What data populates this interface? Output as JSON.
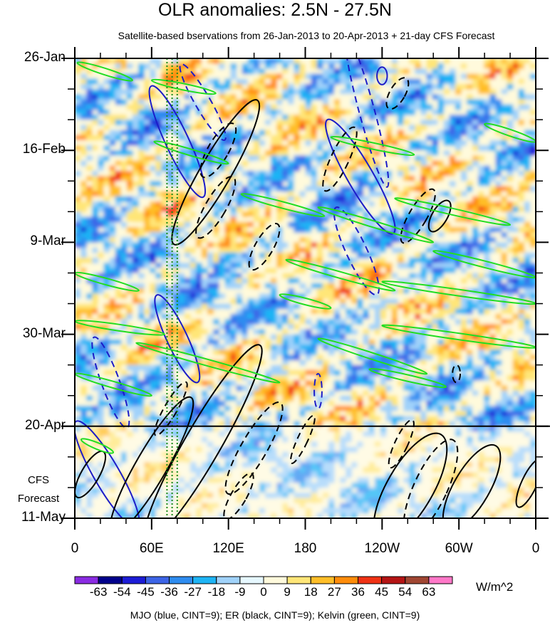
{
  "chart_data": {
    "type": "heatmap",
    "title": "OLR anomalies: 2.5N - 27.5N",
    "subtitle": "Satellite-based bservations from 26-Jan-2013 to 20-Apr-2013 + 21-day CFS Forecast",
    "xlabel": "",
    "ylabel": "",
    "x_ticks": [
      {
        "lon": 0,
        "label": "0"
      },
      {
        "lon": 60,
        "label": "60E"
      },
      {
        "lon": 120,
        "label": "120E"
      },
      {
        "lon": 180,
        "label": "180"
      },
      {
        "lon": 240,
        "label": "120W"
      },
      {
        "lon": 300,
        "label": "60W"
      },
      {
        "lon": 360,
        "label": "0"
      }
    ],
    "xlim": [
      0,
      360
    ],
    "y_ticks": [
      {
        "day": 0,
        "label": "26-Jan"
      },
      {
        "day": 21,
        "label": "16-Feb"
      },
      {
        "day": 42,
        "label": "9-Mar"
      },
      {
        "day": 63,
        "label": "30-Mar"
      },
      {
        "day": 84,
        "label": "20-Apr"
      },
      {
        "day": 105,
        "label": "11-May"
      }
    ],
    "ylim_days": [
      0,
      105
    ],
    "forecast_start_day": 84,
    "forecast_label_line1": "CFS",
    "forecast_label_line2": "Forecast",
    "vertical_dotted_lines_lon": [
      72,
      76,
      80
    ],
    "colorbar": {
      "units": "W/m^2",
      "labels": [
        "-63",
        "-54",
        "-45",
        "-36",
        "-27",
        "-18",
        "-9",
        "0",
        "9",
        "18",
        "27",
        "36",
        "45",
        "54",
        "63"
      ],
      "colors": [
        "#8a2be2",
        "#00008b",
        "#1c1cd6",
        "#3c64e6",
        "#2e8cf0",
        "#1eb4f5",
        "#a0d2fa",
        "#e6f8ff",
        "#fffadc",
        "#ffe678",
        "#ffbe28",
        "#ff8c0a",
        "#f03214",
        "#b41414",
        "#a04632",
        "#ff78c8"
      ]
    },
    "legend": "MJO (blue, CINT=9); ER (black, CINT=9); Kelvin (green, CINT=9)",
    "contours": {
      "mjo": [
        {
          "lon": 100,
          "day": 10,
          "lon_r": 6,
          "day_r": 10,
          "tilt": -30,
          "dash": true
        },
        {
          "lon": 80,
          "day": 19,
          "lon_r": 9,
          "day_r": 14,
          "tilt": -25,
          "dash": false
        },
        {
          "lon": 240,
          "day": 4,
          "lon_r": 4,
          "day_r": 2,
          "tilt": 0,
          "dash": false
        },
        {
          "lon": 228,
          "day": 12,
          "lon_r": 6,
          "day_r": 18,
          "tilt": -15,
          "dash": true
        },
        {
          "lon": 223,
          "day": 27,
          "lon_r": 10,
          "day_r": 15,
          "tilt": -30,
          "dash": false
        },
        {
          "lon": 220,
          "day": 44,
          "lon_r": 8,
          "day_r": 11,
          "tilt": -25,
          "dash": true
        },
        {
          "lon": 80,
          "day": 64,
          "lon_r": 8,
          "day_r": 11,
          "tilt": -25,
          "dash": false
        },
        {
          "lon": 28,
          "day": 74,
          "lon_r": 7,
          "day_r": 11,
          "tilt": -20,
          "dash": true
        },
        {
          "lon": 25,
          "day": 95,
          "lon_r": 10,
          "day_r": 14,
          "tilt": -30,
          "dash": false
        },
        {
          "lon": 190,
          "day": 76,
          "lon_r": 3,
          "day_r": 4,
          "tilt": 0,
          "dash": true
        }
      ],
      "er": [
        {
          "lon": 110,
          "day": 26,
          "lon_r": 12,
          "day_r": 19,
          "tilt": 30,
          "dash": false
        },
        {
          "lon": 112,
          "day": 21,
          "lon_r": 8,
          "day_r": 7,
          "tilt": 30,
          "dash": true
        },
        {
          "lon": 110,
          "day": 34,
          "lon_r": 8,
          "day_r": 8,
          "tilt": 30,
          "dash": true
        },
        {
          "lon": 148,
          "day": 43,
          "lon_r": 7,
          "day_r": 6,
          "tilt": 30,
          "dash": true
        },
        {
          "lon": 207,
          "day": 23,
          "lon_r": 7,
          "day_r": 8,
          "tilt": 25,
          "dash": true
        },
        {
          "lon": 252,
          "day": 8,
          "lon_r": 6,
          "day_r": 4,
          "tilt": 30,
          "dash": true
        },
        {
          "lon": 268,
          "day": 36,
          "lon_r": 7,
          "day_r": 7,
          "tilt": 30,
          "dash": true
        },
        {
          "lon": 285,
          "day": 36,
          "lon_r": 6,
          "day_r": 4,
          "tilt": 30,
          "dash": false
        },
        {
          "lon": 100,
          "day": 88,
          "lon_r": 14,
          "day_r": 26,
          "tilt": 30,
          "dash": false
        },
        {
          "lon": 60,
          "day": 93,
          "lon_r": 12,
          "day_r": 18,
          "tilt": 30,
          "dash": false
        },
        {
          "lon": 75,
          "day": 80,
          "lon_r": 5,
          "day_r": 7,
          "tilt": 30,
          "dash": true
        },
        {
          "lon": 140,
          "day": 89,
          "lon_r": 10,
          "day_r": 12,
          "tilt": 30,
          "dash": true
        },
        {
          "lon": 128,
          "day": 100,
          "lon_r": 6,
          "day_r": 6,
          "tilt": 30,
          "dash": true
        },
        {
          "lon": 178,
          "day": 87,
          "lon_r": 4,
          "day_r": 6,
          "tilt": 25,
          "dash": true
        },
        {
          "lon": 255,
          "day": 88,
          "lon_r": 5,
          "day_r": 6,
          "tilt": 25,
          "dash": true
        },
        {
          "lon": 262,
          "day": 98,
          "lon_r": 18,
          "day_r": 14,
          "tilt": 30,
          "dash": false
        },
        {
          "lon": 278,
          "day": 98,
          "lon_r": 13,
          "day_r": 12,
          "tilt": 25,
          "dash": true
        },
        {
          "lon": 310,
          "day": 98,
          "lon_r": 14,
          "day_r": 11,
          "tilt": 30,
          "dash": false
        },
        {
          "lon": 355,
          "day": 97,
          "lon_r": 6,
          "day_r": 6,
          "tilt": 25,
          "dash": false
        },
        {
          "lon": 298,
          "day": 72,
          "lon_r": 3,
          "day_r": 2,
          "tilt": 0,
          "dash": true
        },
        {
          "lon": 12,
          "day": 95,
          "lon_r": 7,
          "day_r": 6,
          "tilt": 30,
          "dash": false
        }
      ],
      "kelvin": [
        {
          "lon0": 2,
          "day0": 1,
          "lon1": 45,
          "day1": 5
        },
        {
          "lon0": 60,
          "day0": 5,
          "lon1": 110,
          "day1": 8
        },
        {
          "lon0": 320,
          "day0": 15,
          "lon1": 360,
          "day1": 19
        },
        {
          "lon0": 200,
          "day0": 18,
          "lon1": 265,
          "day1": 22
        },
        {
          "lon0": 62,
          "day0": 19,
          "lon1": 120,
          "day1": 24
        },
        {
          "lon0": 130,
          "day0": 31,
          "lon1": 195,
          "day1": 36
        },
        {
          "lon0": 190,
          "day0": 34,
          "lon1": 280,
          "day1": 42
        },
        {
          "lon0": 250,
          "day0": 32,
          "lon1": 340,
          "day1": 38
        },
        {
          "lon0": 0,
          "day0": 49,
          "lon1": 50,
          "day1": 53
        },
        {
          "lon0": 165,
          "day0": 46,
          "lon1": 250,
          "day1": 53
        },
        {
          "lon0": 240,
          "day0": 51,
          "lon1": 360,
          "day1": 56
        },
        {
          "lon0": 280,
          "day0": 44,
          "lon1": 360,
          "day1": 50
        },
        {
          "lon0": 160,
          "day0": 54,
          "lon1": 200,
          "day1": 57
        },
        {
          "lon0": 0,
          "day0": 60,
          "lon1": 70,
          "day1": 63
        },
        {
          "lon0": 240,
          "day0": 61,
          "lon1": 360,
          "day1": 66
        },
        {
          "lon0": 190,
          "day0": 64,
          "lon1": 275,
          "day1": 72
        },
        {
          "lon0": 48,
          "day0": 65,
          "lon1": 160,
          "day1": 74
        },
        {
          "lon0": 0,
          "day0": 72,
          "lon1": 60,
          "day1": 77
        },
        {
          "lon0": 230,
          "day0": 71,
          "lon1": 290,
          "day1": 75
        },
        {
          "lon0": 5,
          "day0": 87,
          "lon1": 30,
          "day1": 90
        }
      ]
    }
  }
}
